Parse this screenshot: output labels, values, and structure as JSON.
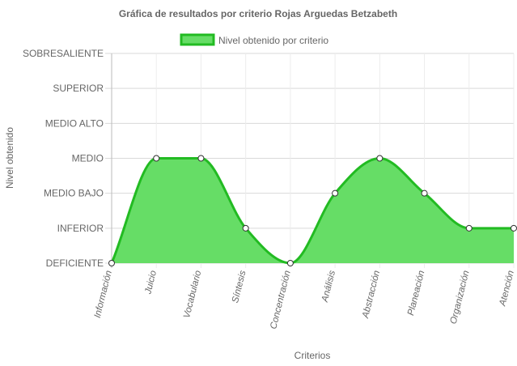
{
  "chart_data": {
    "type": "area",
    "title": "Gráfica de resultados por criterio Rojas Arguedas Betzabeth",
    "xlabel": "Criterios",
    "ylabel": "Nivel obtenido",
    "categories": [
      "Información",
      "Juicio",
      "Vocabulario",
      "Síntesis",
      "Concentración",
      "Análisis",
      "Abstracción",
      "Planeación",
      "Organización",
      "Atención"
    ],
    "y_levels": [
      "DEFICIENTE",
      "INFERIOR",
      "MEDIO BAJO",
      "MEDIO",
      "MEDIO ALTO",
      "SUPERIOR",
      "SOBRESALIENTE"
    ],
    "ylim": [
      0,
      6
    ],
    "grid": true,
    "legend_position": "top-center",
    "series": [
      {
        "name": "Nivel obtenido por criterio",
        "values": [
          0,
          3,
          3,
          1,
          0,
          2,
          3,
          2,
          1,
          1
        ],
        "fill_color": "#66dd66",
        "line_color": "#22bb22"
      }
    ]
  }
}
